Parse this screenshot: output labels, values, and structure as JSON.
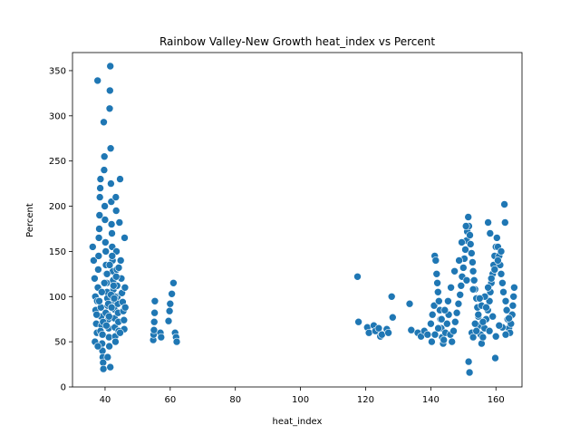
{
  "chart_data": {
    "type": "scatter",
    "title": "Rainbow Valley-New Growth heat_index vs Percent",
    "xlabel": "heat_index",
    "ylabel": "Percent",
    "xlim": [
      30,
      168
    ],
    "ylim": [
      0,
      370
    ],
    "xticks": [
      40,
      60,
      80,
      100,
      120,
      140,
      160
    ],
    "yticks": [
      0,
      50,
      100,
      150,
      200,
      250,
      300,
      350
    ],
    "grid": false,
    "marker_color": "#1f77b4",
    "marker_edge": "#ffffff",
    "points": [
      [
        36.2,
        155
      ],
      [
        36.5,
        140
      ],
      [
        36.8,
        120
      ],
      [
        37.0,
        100
      ],
      [
        37.1,
        85
      ],
      [
        37.3,
        70
      ],
      [
        37.5,
        60
      ],
      [
        37.6,
        95
      ],
      [
        37.7,
        339
      ],
      [
        37.8,
        110
      ],
      [
        37.9,
        130
      ],
      [
        38.0,
        145
      ],
      [
        38.1,
        165
      ],
      [
        38.2,
        175
      ],
      [
        38.3,
        190
      ],
      [
        38.4,
        210
      ],
      [
        38.5,
        220
      ],
      [
        38.6,
        230
      ],
      [
        38.7,
        88
      ],
      [
        38.8,
        78
      ],
      [
        38.9,
        68
      ],
      [
        39.0,
        58
      ],
      [
        39.1,
        48
      ],
      [
        39.2,
        40
      ],
      [
        39.3,
        33
      ],
      [
        39.4,
        27
      ],
      [
        39.5,
        20
      ],
      [
        39.6,
        293
      ],
      [
        39.7,
        240
      ],
      [
        39.8,
        255
      ],
      [
        39.9,
        200
      ],
      [
        40.0,
        185
      ],
      [
        40.1,
        160
      ],
      [
        40.2,
        150
      ],
      [
        40.3,
        135
      ],
      [
        40.4,
        125
      ],
      [
        40.5,
        115
      ],
      [
        40.6,
        105
      ],
      [
        40.7,
        98
      ],
      [
        40.8,
        90
      ],
      [
        40.9,
        80
      ],
      [
        41.0,
        75
      ],
      [
        41.1,
        65
      ],
      [
        41.2,
        55
      ],
      [
        41.3,
        45
      ],
      [
        41.4,
        308
      ],
      [
        41.5,
        328
      ],
      [
        41.6,
        355
      ],
      [
        41.7,
        264
      ],
      [
        41.8,
        225
      ],
      [
        41.9,
        205
      ],
      [
        42.0,
        180
      ],
      [
        42.1,
        170
      ],
      [
        42.2,
        155
      ],
      [
        42.3,
        140
      ],
      [
        42.4,
        128
      ],
      [
        42.5,
        118
      ],
      [
        42.6,
        108
      ],
      [
        42.7,
        96
      ],
      [
        42.8,
        86
      ],
      [
        42.9,
        76
      ],
      [
        43.0,
        66
      ],
      [
        43.1,
        56
      ],
      [
        43.2,
        50
      ],
      [
        41.6,
        22
      ],
      [
        40.8,
        33
      ],
      [
        43.3,
        210
      ],
      [
        43.4,
        195
      ],
      [
        43.5,
        150
      ],
      [
        43.6,
        130
      ],
      [
        43.7,
        112
      ],
      [
        43.8,
        100
      ],
      [
        43.9,
        92
      ],
      [
        44.0,
        82
      ],
      [
        44.1,
        72
      ],
      [
        44.2,
        62
      ],
      [
        44.4,
        182
      ],
      [
        44.6,
        230
      ],
      [
        44.8,
        140
      ],
      [
        45.0,
        120
      ],
      [
        45.2,
        104
      ],
      [
        45.4,
        94
      ],
      [
        45.6,
        84
      ],
      [
        45.8,
        74
      ],
      [
        45.9,
        64
      ],
      [
        46.0,
        165
      ],
      [
        46.1,
        110
      ],
      [
        46.2,
        88
      ],
      [
        37.4,
        80
      ],
      [
        38.2,
        95
      ],
      [
        39.0,
        105
      ],
      [
        39.8,
        115
      ],
      [
        40.6,
        125
      ],
      [
        41.4,
        135
      ],
      [
        42.2,
        145
      ],
      [
        43.0,
        100
      ],
      [
        38.6,
        62
      ],
      [
        39.4,
        72
      ],
      [
        40.2,
        82
      ],
      [
        41.0,
        92
      ],
      [
        41.8,
        102
      ],
      [
        42.6,
        112
      ],
      [
        43.4,
        122
      ],
      [
        44.2,
        132
      ],
      [
        36.9,
        50
      ],
      [
        37.8,
        45
      ],
      [
        39.2,
        58
      ],
      [
        40.4,
        68
      ],
      [
        41.2,
        78
      ],
      [
        42.0,
        88
      ],
      [
        42.8,
        98
      ],
      [
        44.6,
        60
      ],
      [
        54.8,
        52
      ],
      [
        54.9,
        58
      ],
      [
        55.0,
        63
      ],
      [
        55.1,
        72
      ],
      [
        55.2,
        82
      ],
      [
        55.3,
        95
      ],
      [
        57.0,
        60
      ],
      [
        57.2,
        55
      ],
      [
        59.5,
        73
      ],
      [
        59.8,
        84
      ],
      [
        60.0,
        92
      ],
      [
        60.5,
        103
      ],
      [
        61.0,
        115
      ],
      [
        61.5,
        60
      ],
      [
        61.8,
        55
      ],
      [
        62.0,
        50
      ],
      [
        117.5,
        122
      ],
      [
        117.8,
        72
      ],
      [
        120.5,
        66
      ],
      [
        121.0,
        60
      ],
      [
        122.5,
        68
      ],
      [
        123.0,
        62
      ],
      [
        124.0,
        65
      ],
      [
        124.5,
        56
      ],
      [
        125.0,
        58
      ],
      [
        126.5,
        64
      ],
      [
        127.0,
        60
      ],
      [
        128.0,
        100
      ],
      [
        128.3,
        77
      ],
      [
        133.5,
        92
      ],
      [
        134.0,
        63
      ],
      [
        136.0,
        60
      ],
      [
        137.0,
        56
      ],
      [
        138.0,
        62
      ],
      [
        139.0,
        58
      ],
      [
        140.0,
        70
      ],
      [
        140.5,
        80
      ],
      [
        141.0,
        90
      ],
      [
        141.2,
        145
      ],
      [
        141.5,
        140
      ],
      [
        141.8,
        125
      ],
      [
        142.0,
        115
      ],
      [
        142.2,
        105
      ],
      [
        142.5,
        95
      ],
      [
        142.8,
        85
      ],
      [
        143.0,
        75
      ],
      [
        143.2,
        65
      ],
      [
        143.5,
        55
      ],
      [
        143.8,
        48
      ],
      [
        144.0,
        52
      ],
      [
        144.5,
        60
      ],
      [
        145.0,
        70
      ],
      [
        145.5,
        80
      ],
      [
        146.0,
        58
      ],
      [
        146.5,
        50
      ],
      [
        147.0,
        62
      ],
      [
        147.5,
        72
      ],
      [
        148.0,
        82
      ],
      [
        148.5,
        92
      ],
      [
        149.0,
        102
      ],
      [
        149.3,
        112
      ],
      [
        149.6,
        122
      ],
      [
        150.0,
        132
      ],
      [
        150.3,
        142
      ],
      [
        150.6,
        152
      ],
      [
        151.0,
        162
      ],
      [
        151.2,
        172
      ],
      [
        151.5,
        188
      ],
      [
        151.7,
        178
      ],
      [
        152.0,
        168
      ],
      [
        152.2,
        158
      ],
      [
        152.5,
        148
      ],
      [
        152.8,
        138
      ],
      [
        153.0,
        128
      ],
      [
        153.3,
        118
      ],
      [
        153.6,
        108
      ],
      [
        154.0,
        98
      ],
      [
        154.3,
        88
      ],
      [
        154.6,
        78
      ],
      [
        155.0,
        68
      ],
      [
        155.3,
        58
      ],
      [
        155.6,
        48
      ],
      [
        156.0,
        55
      ],
      [
        156.5,
        65
      ],
      [
        157.0,
        75
      ],
      [
        157.5,
        85
      ],
      [
        158.0,
        95
      ],
      [
        158.3,
        105
      ],
      [
        158.6,
        115
      ],
      [
        159.0,
        125
      ],
      [
        159.3,
        135
      ],
      [
        159.6,
        145
      ],
      [
        160.0,
        155
      ],
      [
        160.3,
        165
      ],
      [
        160.6,
        155
      ],
      [
        161.0,
        145
      ],
      [
        161.3,
        135
      ],
      [
        161.6,
        125
      ],
      [
        162.0,
        115
      ],
      [
        162.3,
        105
      ],
      [
        162.6,
        202
      ],
      [
        162.8,
        182
      ],
      [
        163.0,
        95
      ],
      [
        163.3,
        85
      ],
      [
        163.6,
        75
      ],
      [
        164.0,
        65
      ],
      [
        164.3,
        60
      ],
      [
        164.6,
        70
      ],
      [
        165.0,
        80
      ],
      [
        165.2,
        90
      ],
      [
        165.4,
        100
      ],
      [
        165.6,
        110
      ],
      [
        151.6,
        28
      ],
      [
        151.9,
        16
      ],
      [
        157.6,
        182
      ],
      [
        158.2,
        170
      ],
      [
        159.8,
        32
      ],
      [
        150.8,
        178
      ],
      [
        149.5,
        160
      ],
      [
        148.7,
        140
      ],
      [
        147.3,
        128
      ],
      [
        146.2,
        110
      ],
      [
        145.3,
        95
      ],
      [
        144.3,
        85
      ],
      [
        143.3,
        75
      ],
      [
        142.3,
        65
      ],
      [
        141.3,
        58
      ],
      [
        140.3,
        50
      ],
      [
        152.6,
        60
      ],
      [
        153.6,
        70
      ],
      [
        154.6,
        80
      ],
      [
        155.6,
        90
      ],
      [
        156.6,
        100
      ],
      [
        157.6,
        110
      ],
      [
        158.6,
        120
      ],
      [
        159.6,
        130
      ],
      [
        160.6,
        140
      ],
      [
        161.6,
        150
      ],
      [
        153.0,
        55
      ],
      [
        154.0,
        62
      ],
      [
        156.0,
        72
      ],
      [
        158.0,
        62
      ],
      [
        160.0,
        56
      ],
      [
        162.0,
        66
      ],
      [
        164.0,
        76
      ],
      [
        163.0,
        58
      ],
      [
        161.0,
        68
      ],
      [
        159.0,
        78
      ],
      [
        157.0,
        88
      ],
      [
        155.0,
        98
      ],
      [
        153.0,
        108
      ],
      [
        151.0,
        118
      ]
    ]
  }
}
